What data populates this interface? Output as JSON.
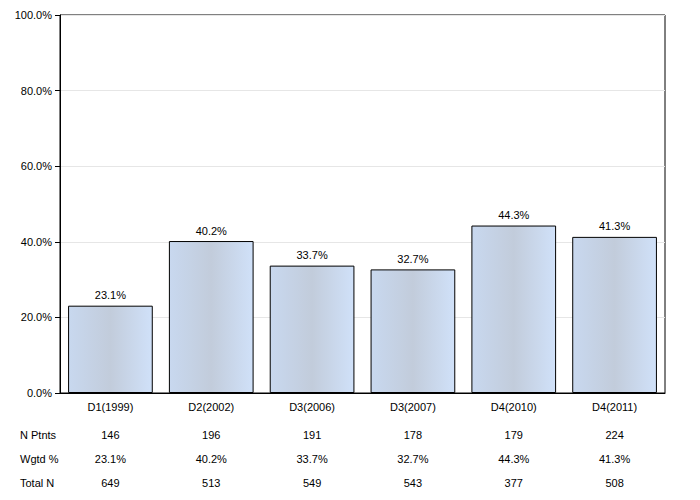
{
  "chart_data": {
    "type": "bar",
    "categories": [
      "D1(1999)",
      "D2(2002)",
      "D3(2006)",
      "D3(2007)",
      "D4(2010)",
      "D4(2011)"
    ],
    "values": [
      23.1,
      40.2,
      33.7,
      32.7,
      44.3,
      41.3
    ],
    "value_labels": [
      "23.1%",
      "40.2%",
      "33.7%",
      "32.7%",
      "44.3%",
      "41.3%"
    ],
    "color": "#aebcd0",
    "ylim": [
      0,
      100
    ],
    "yticks": [
      {
        "value": 0,
        "label": "0.0%"
      },
      {
        "value": 20,
        "label": "20.0%"
      },
      {
        "value": 40,
        "label": "40.0%"
      },
      {
        "value": 60,
        "label": "60.0%"
      },
      {
        "value": 80,
        "label": "80.0%"
      },
      {
        "value": 100,
        "label": "100.0%"
      }
    ],
    "grid": true,
    "data_labels": true,
    "table": {
      "rows": [
        {
          "label": "N Ptnts",
          "values": [
            "146",
            "196",
            "191",
            "178",
            "179",
            "224"
          ]
        },
        {
          "label": "Wgtd %",
          "values": [
            "23.1%",
            "40.2%",
            "33.7%",
            "32.7%",
            "44.3%",
            "41.3%"
          ]
        },
        {
          "label": "Total N",
          "values": [
            "649",
            "513",
            "549",
            "543",
            "377",
            "508"
          ]
        }
      ]
    }
  }
}
